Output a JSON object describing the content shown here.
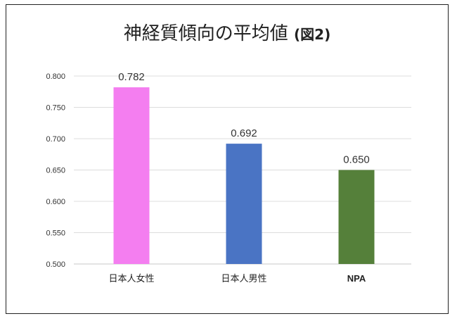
{
  "chart_data": {
    "type": "bar",
    "title": "神経質傾向の平均値",
    "title_suffix": "(図2)",
    "xlabel": "",
    "ylabel": "",
    "categories": [
      "日本人女性",
      "日本人男性",
      "NPA"
    ],
    "values": [
      0.782,
      0.692,
      0.65
    ],
    "value_labels": [
      "0.782",
      "0.692",
      "0.650"
    ],
    "bar_colors": [
      "#f47ef0",
      "#4a74c4",
      "#55803a"
    ],
    "ylim": [
      0.5,
      0.8
    ],
    "yticks": [
      "0.500",
      "0.550",
      "0.600",
      "0.650",
      "0.700",
      "0.750",
      "0.800"
    ],
    "grid": true,
    "legend": "none"
  }
}
